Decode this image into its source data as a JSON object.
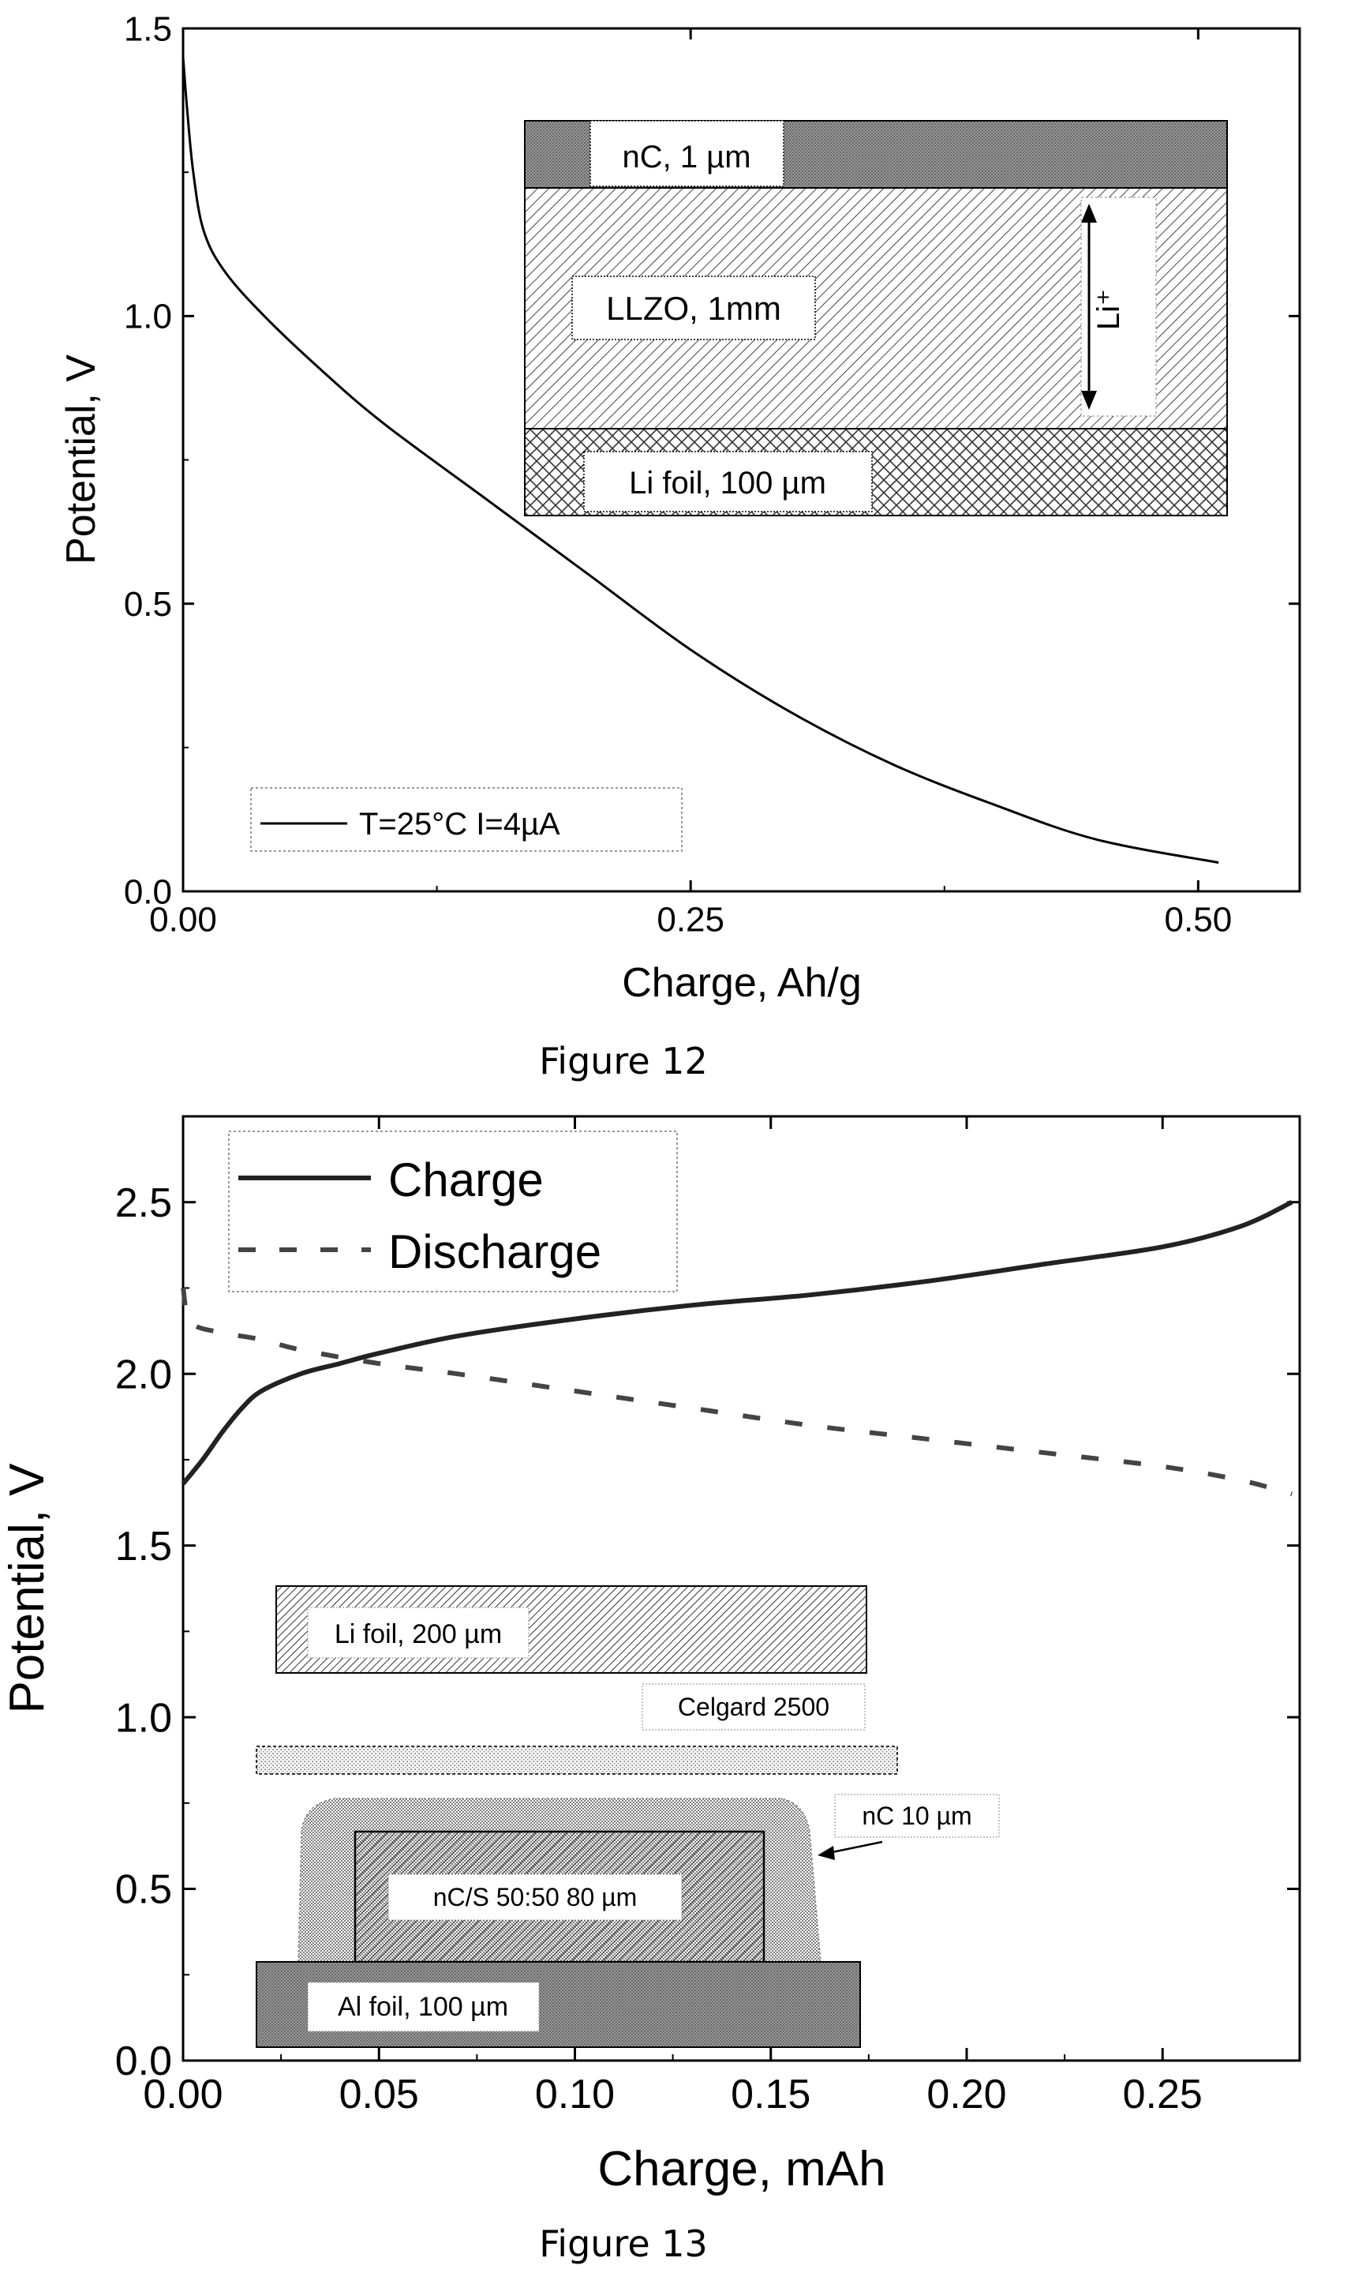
{
  "chart_data": [
    {
      "type": "line",
      "xlabel": "Charge, Ah/g",
      "ylabel": "Potential, V",
      "xlim": [
        0,
        0.55
      ],
      "ylim": [
        0,
        1.5
      ],
      "x_ticks": [
        "0.00",
        "0.25",
        "0.50"
      ],
      "x_tick_values": [
        0,
        0.25,
        0.5
      ],
      "y_ticks": [
        "0.0",
        "0.5",
        "1.0",
        "1.5"
      ],
      "y_tick_values": [
        0,
        0.5,
        1.0,
        1.5
      ],
      "legend": {
        "position": "bottom-left",
        "entries": [
          "T=25°C   I=4µA"
        ]
      },
      "series": [
        {
          "name": "T=25°C   I=4µA",
          "style": "solid",
          "x": [
            0.0,
            0.002,
            0.005,
            0.01,
            0.02,
            0.04,
            0.07,
            0.1,
            0.15,
            0.2,
            0.25,
            0.3,
            0.35,
            0.4,
            0.45,
            0.51
          ],
          "y": [
            1.45,
            1.36,
            1.25,
            1.15,
            1.08,
            1.0,
            0.9,
            0.81,
            0.68,
            0.55,
            0.42,
            0.31,
            0.22,
            0.15,
            0.09,
            0.05
          ]
        }
      ],
      "inset": {
        "layers": [
          "nC, 1 µm",
          "LLZO, 1mm",
          "Li foil, 100 µm"
        ],
        "ion_label": "Li⁺"
      },
      "caption": "Figure 12"
    },
    {
      "type": "line",
      "xlabel": "Charge, mAh",
      "ylabel": "Potential, V",
      "xlim": [
        0,
        0.285
      ],
      "ylim": [
        0,
        2.75
      ],
      "x_ticks": [
        "0.00",
        "0.05",
        "0.10",
        "0.15",
        "0.20",
        "0.25"
      ],
      "x_tick_values": [
        0,
        0.05,
        0.1,
        0.15,
        0.2,
        0.25
      ],
      "y_ticks": [
        "0.0",
        "0.5",
        "1.0",
        "1.5",
        "2.0",
        "2.5"
      ],
      "y_tick_values": [
        0,
        0.5,
        1.0,
        1.5,
        2.0,
        2.5
      ],
      "legend": {
        "position": "top-left",
        "entries": [
          "Charge",
          "Discharge"
        ]
      },
      "series": [
        {
          "name": "Charge",
          "style": "solid",
          "x": [
            0.0,
            0.005,
            0.01,
            0.015,
            0.02,
            0.03,
            0.04,
            0.05,
            0.07,
            0.1,
            0.13,
            0.16,
            0.19,
            0.22,
            0.25,
            0.27,
            0.283
          ],
          "y": [
            1.68,
            1.75,
            1.83,
            1.9,
            1.95,
            2.0,
            2.03,
            2.06,
            2.11,
            2.16,
            2.2,
            2.23,
            2.27,
            2.32,
            2.37,
            2.43,
            2.5
          ]
        },
        {
          "name": "Discharge",
          "style": "dashed",
          "x": [
            0.0,
            0.002,
            0.01,
            0.02,
            0.03,
            0.05,
            0.07,
            0.1,
            0.13,
            0.16,
            0.19,
            0.22,
            0.25,
            0.27,
            0.283
          ],
          "y": [
            2.25,
            2.15,
            2.12,
            2.1,
            2.07,
            2.03,
            2.0,
            1.95,
            1.9,
            1.85,
            1.81,
            1.77,
            1.73,
            1.69,
            1.65
          ]
        }
      ],
      "inset": {
        "layers": [
          "Li foil, 200 µm",
          "Celgard 2500",
          "nC 10 µm",
          "nC/S 50:50 80 µm",
          "Al foil, 100 µm"
        ]
      },
      "caption": "Figure 13"
    }
  ]
}
